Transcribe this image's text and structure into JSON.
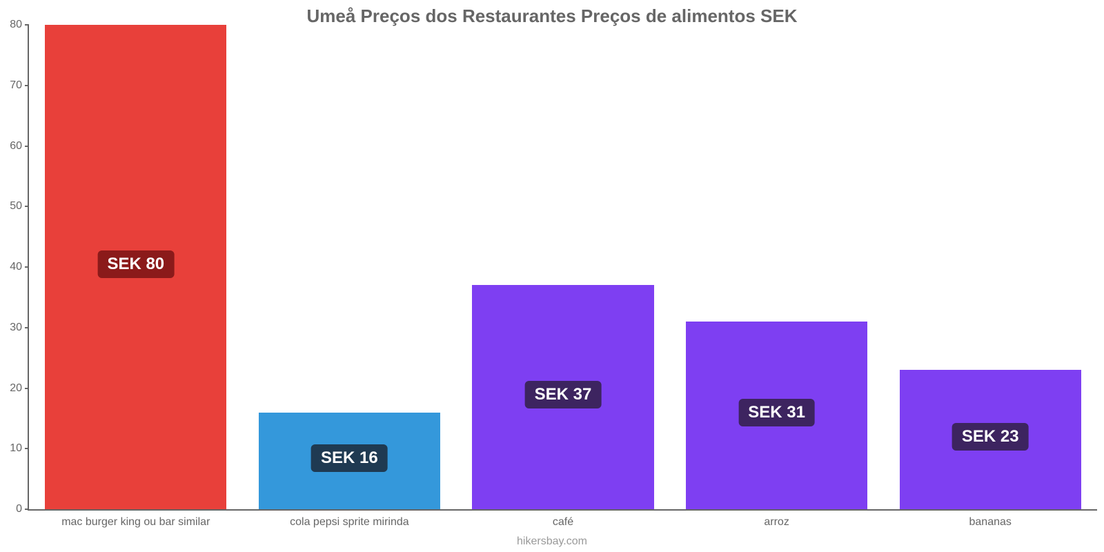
{
  "chart": {
    "type": "bar",
    "title": "Umeå Preços dos Restaurantes Preços de alimentos SEK",
    "title_color": "#666666",
    "title_fontsize": 26,
    "credit": "hikersbay.com",
    "credit_color": "#999999",
    "credit_fontsize": 16,
    "background_color": "#ffffff",
    "axis_color": "#666666",
    "tick_label_color": "#666666",
    "tick_label_fontsize": 16,
    "x_label_fontsize": 16,
    "value_badge_fontsize": 24,
    "ylim": [
      0,
      80
    ],
    "yticks": [
      0,
      10,
      20,
      30,
      40,
      50,
      60,
      70,
      80
    ],
    "bar_width_pct": 17,
    "categories": [
      "mac burger king ou bar similar",
      "cola pepsi sprite mirinda",
      "café",
      "arroz",
      "bananas"
    ],
    "values": [
      80,
      16,
      37,
      31,
      23
    ],
    "value_labels": [
      "SEK 80",
      "SEK 16",
      "SEK 37",
      "SEK 31",
      "SEK 23"
    ],
    "bar_colors": [
      "#e8403a",
      "#3498db",
      "#7e3ff2",
      "#7e3ff2",
      "#7e3ff2"
    ],
    "badge_colors": [
      "#8b1a1a",
      "#1f3a52",
      "#3d2460",
      "#3d2460",
      "#3d2460"
    ]
  }
}
